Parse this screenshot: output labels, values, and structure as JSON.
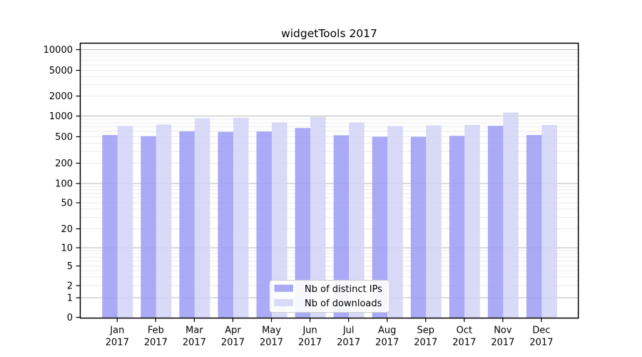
{
  "figure": {
    "background": "#ffffff"
  },
  "chart_data": {
    "type": "bar",
    "title": "widgetTools 2017",
    "categories": [
      "Jan 2017",
      "Feb 2017",
      "Mar 2017",
      "Apr 2017",
      "May 2017",
      "Jun 2017",
      "Jul 2017",
      "Aug 2017",
      "Sep 2017",
      "Oct 2017",
      "Nov 2017",
      "Dec 2017"
    ],
    "x_tick_line2": "2017",
    "series": [
      {
        "name": "Nb of distinct IPs",
        "color": "#aaaaf6",
        "values": [
          530,
          510,
          600,
          590,
          595,
          670,
          525,
          500,
          500,
          515,
          720,
          530
        ]
      },
      {
        "name": "Nb of downloads",
        "color": "#d9d9f8",
        "values": [
          720,
          755,
          930,
          940,
          810,
          975,
          800,
          715,
          730,
          745,
          1130,
          740
        ]
      }
    ],
    "yscale": "symlog",
    "ylim": [
      0,
      10000
    ],
    "y_ticks": [
      0,
      1,
      2,
      5,
      10,
      20,
      50,
      100,
      200,
      500,
      1000,
      2000,
      5000,
      10000
    ],
    "grid": "both",
    "grid_major_color": "#b9b9b9",
    "grid_minor_color": "#e9e9e9",
    "axis_color": "#000000",
    "legend_position": "lower center",
    "legend_border_color": "#cccccc"
  }
}
